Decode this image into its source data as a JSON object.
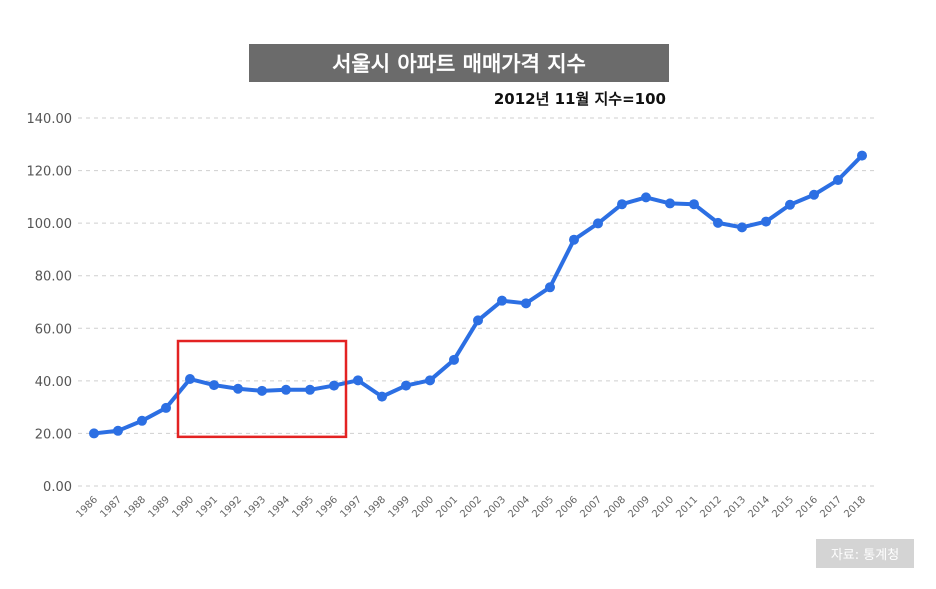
{
  "chart_data": {
    "type": "line",
    "title": "서울시 아파트 매매가격 지수",
    "subtitle": "2012년 11월 지수=100",
    "xlabel": "",
    "ylabel": "",
    "ylim": [
      0,
      140
    ],
    "yticks": [
      "0.00",
      "20.00",
      "40.00",
      "60.00",
      "80.00",
      "100.00",
      "120.00",
      "140.00"
    ],
    "grid": true,
    "categories": [
      "1986",
      "1987",
      "1988",
      "1989",
      "1990",
      "1991",
      "1992",
      "1993",
      "1994",
      "1995",
      "1996",
      "1997",
      "1998",
      "1999",
      "2000",
      "2001",
      "2002",
      "2003",
      "2004",
      "2005",
      "2006",
      "2007",
      "2008",
      "2009",
      "2010",
      "2011",
      "2012",
      "2013",
      "2014",
      "2015",
      "2016",
      "2017",
      "2018"
    ],
    "series": [
      {
        "values": [
          20.0,
          21.0,
          24.8,
          29.7,
          40.7,
          38.4,
          37.0,
          36.2,
          36.6,
          36.6,
          38.2,
          40.2,
          34.0,
          38.2,
          40.2,
          48.0,
          63.0,
          70.5,
          69.5,
          75.6,
          93.7,
          99.9,
          107.2,
          109.8,
          107.5,
          107.2,
          100.1,
          98.4,
          100.6,
          107.0,
          110.8,
          116.4,
          125.7
        ],
        "color": "#2c6fe3"
      }
    ],
    "highlight": {
      "from": "1990",
      "to": "1996",
      "color": "#e32222"
    }
  },
  "source": {
    "label": "자료: 통계청"
  }
}
